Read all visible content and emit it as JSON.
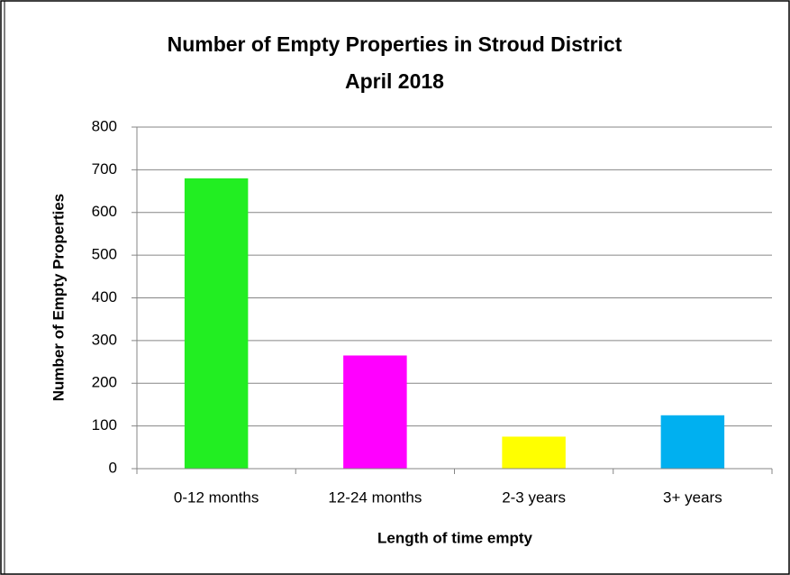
{
  "chart_data": {
    "type": "bar",
    "title": [
      "Number of Empty Properties in Stroud District",
      "April 2018"
    ],
    "x_label": "Length of time empty",
    "y_label": "Number of Empty Properties",
    "categories": [
      "0-12 months",
      "12-24 months",
      "2-3 years",
      "3+ years"
    ],
    "values": [
      680,
      265,
      75,
      125
    ],
    "colors": [
      "#22ee22",
      "#ff00ff",
      "#ffff00",
      "#00b0f0"
    ],
    "ylim": [
      0,
      800
    ],
    "yticks": [
      0,
      100,
      200,
      300,
      400,
      500,
      600,
      700,
      800
    ],
    "grid": true
  }
}
